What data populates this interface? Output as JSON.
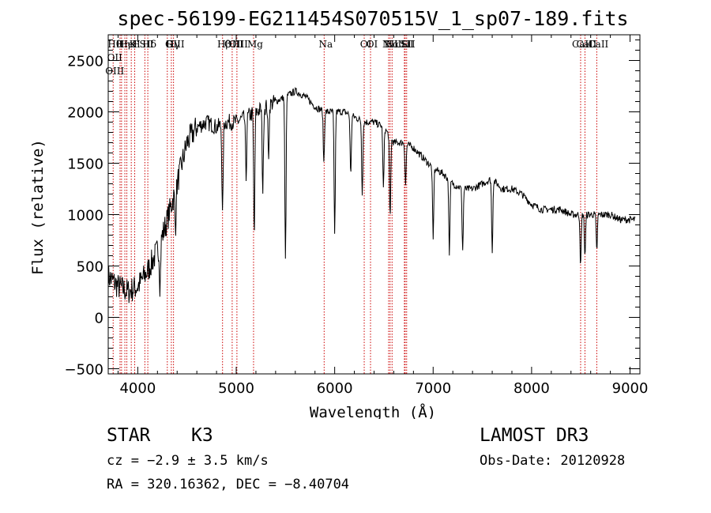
{
  "chart_data": {
    "type": "line",
    "title": "spec-56199-EG211454S070515V_1_sp07-189.fits",
    "xlabel": "Wavelength (Å)",
    "ylabel": "Flux (relative)",
    "xlim": [
      3700,
      9100
    ],
    "ylim": [
      -550,
      2750
    ],
    "xticks": [
      4000,
      5000,
      6000,
      7000,
      8000,
      9000
    ],
    "yticks": [
      -500,
      0,
      500,
      1000,
      1500,
      2000,
      2500
    ],
    "xtick_labels": [
      "4000",
      "5000",
      "6000",
      "7000",
      "8000",
      "9000"
    ],
    "ytick_labels": [
      "−500",
      "0",
      "500",
      "1000",
      "1500",
      "2000",
      "2500"
    ],
    "series": [
      {
        "name": "flux",
        "color": "#000000",
        "continuum": {
          "x": [
            3700,
            3800,
            3900,
            4000,
            4100,
            4200,
            4300,
            4400,
            4500,
            4600,
            4700,
            4800,
            4900,
            5000,
            5100,
            5200,
            5300,
            5400,
            5500,
            5600,
            5700,
            5800,
            5900,
            6000,
            6100,
            6200,
            6300,
            6400,
            6500,
            6600,
            6700,
            6800,
            6900,
            7000,
            7100,
            7200,
            7300,
            7400,
            7500,
            7600,
            7700,
            7800,
            7900,
            8000,
            8100,
            8200,
            8300,
            8400,
            8500,
            8600,
            8700,
            8800,
            8900,
            9000,
            9050
          ],
          "y": [
            400,
            300,
            250,
            300,
            450,
            650,
            950,
            1300,
            1700,
            1850,
            1900,
            1850,
            1900,
            1900,
            1950,
            2000,
            2050,
            2100,
            2150,
            2200,
            2150,
            2050,
            2000,
            2000,
            2000,
            1950,
            1900,
            1900,
            1850,
            1700,
            1700,
            1650,
            1550,
            1450,
            1400,
            1300,
            1250,
            1250,
            1300,
            1350,
            1250,
            1250,
            1200,
            1100,
            1050,
            1050,
            1050,
            1000,
            1000,
            1000,
            1000,
            1000,
            950,
            950,
            950
          ]
        },
        "absorption_lines": {
          "x": [
            4226,
            4383,
            4861,
            5100,
            5183,
            5270,
            5328,
            5500,
            5890,
            6000,
            6163,
            6280,
            6495,
            6563,
            6720,
            7000,
            7165,
            7300,
            7600,
            8498,
            8542,
            8662
          ],
          "depth": [
            400,
            350,
            900,
            600,
            1200,
            800,
            500,
            1600,
            500,
            1200,
            600,
            700,
            600,
            800,
            400,
            700,
            700,
            600,
            700,
            500,
            400,
            350
          ]
        }
      }
    ],
    "reference_lines": [
      {
        "x": 3750,
        "labels": [
          "Hθ",
          "OII",
          "OIII"
        ]
      },
      {
        "x": 3820,
        "labels": []
      },
      {
        "x": 3835,
        "labels": [
          "Hη"
        ]
      },
      {
        "x": 3869,
        "labels": []
      },
      {
        "x": 3889,
        "labels": [
          "HeI"
        ]
      },
      {
        "x": 3934,
        "labels": [
          "K"
        ]
      },
      {
        "x": 3969,
        "labels": [
          "H"
        ]
      },
      {
        "x": 4072,
        "labels": [
          "SII"
        ]
      },
      {
        "x": 4102,
        "labels": [
          "Hδ"
        ]
      },
      {
        "x": 4300,
        "labels": [
          "G"
        ]
      },
      {
        "x": 4341,
        "labels": [
          "Hγ"
        ]
      },
      {
        "x": 4363,
        "labels": [
          "OIII"
        ]
      },
      {
        "x": 4861,
        "labels": [
          "Hβ"
        ]
      },
      {
        "x": 4959,
        "labels": [
          "OIII"
        ]
      },
      {
        "x": 5007,
        "labels": [
          "OIII"
        ]
      },
      {
        "x": 5176,
        "labels": [
          "Mg"
        ]
      },
      {
        "x": 5893,
        "labels": [
          "Na"
        ]
      },
      {
        "x": 6300,
        "labels": [
          "OI"
        ]
      },
      {
        "x": 6364,
        "labels": [
          "OI"
        ]
      },
      {
        "x": 6548,
        "labels": [
          "NII"
        ]
      },
      {
        "x": 6563,
        "labels": [
          "Hα"
        ]
      },
      {
        "x": 6583,
        "labels": [
          "NII"
        ]
      },
      {
        "x": 6708,
        "labels": [
          "Li"
        ]
      },
      {
        "x": 6716,
        "labels": [
          "SII"
        ]
      },
      {
        "x": 6731,
        "labels": [
          "SII"
        ]
      },
      {
        "x": 8498,
        "labels": [
          "CaII"
        ]
      },
      {
        "x": 8542,
        "labels": [
          "CaII"
        ]
      },
      {
        "x": 8662,
        "labels": [
          "CaII"
        ]
      }
    ],
    "reference_line_color": "#cc0000"
  },
  "info": {
    "object_class": "STAR",
    "subclass": "K3",
    "redshift": "cz = −2.9 ± 3.5 km/s",
    "coordinates": "RA = 320.16362, DEC =  −8.40704",
    "survey": "LAMOST DR3",
    "obs_date": "Obs-Date: 20120928"
  }
}
